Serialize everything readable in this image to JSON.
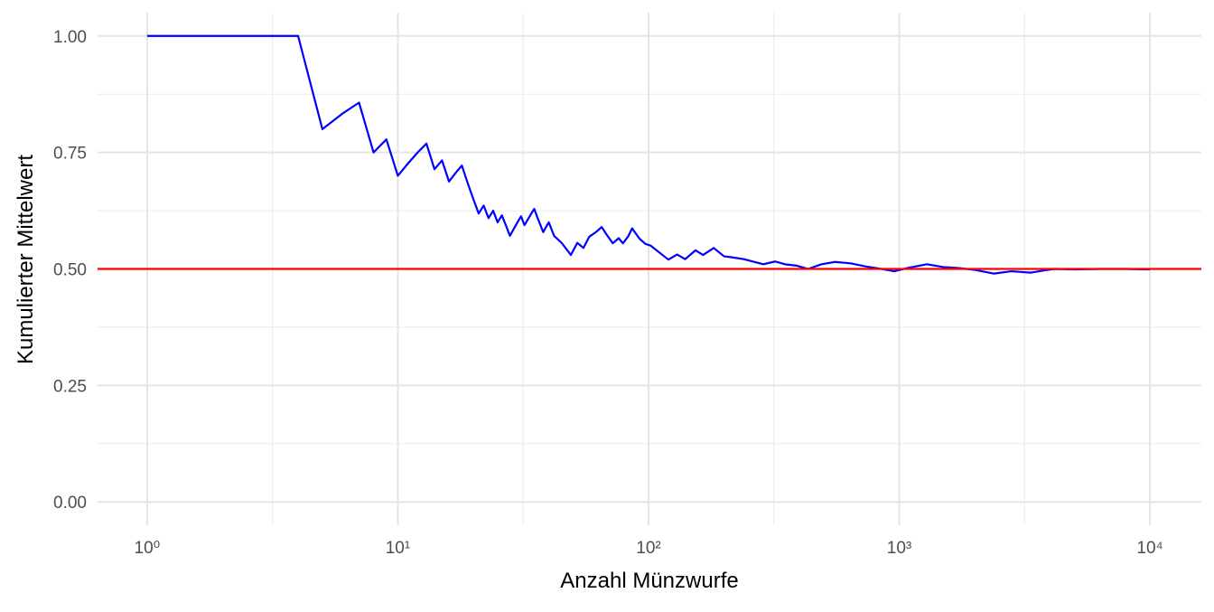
{
  "chart_data": {
    "type": "line",
    "x_label": "Anzahl Münzwurfe",
    "y_label": "Kumulierter Mittelwert",
    "log_x": true,
    "grid": true,
    "xlim": [
      0.634,
      16040
    ],
    "ylim": [
      -0.05,
      1.05
    ],
    "xticks": [
      {
        "value": 1,
        "label": "10⁰"
      },
      {
        "value": 10,
        "label": "10¹"
      },
      {
        "value": 100,
        "label": "10²"
      },
      {
        "value": 1000,
        "label": "10³"
      },
      {
        "value": 10000,
        "label": "10⁴"
      }
    ],
    "x_minor_ticks": [
      3.162,
      31.62,
      316.2,
      3162
    ],
    "yticks": [
      {
        "value": 0,
        "label": "0.00"
      },
      {
        "value": 0.25,
        "label": "0.25"
      },
      {
        "value": 0.5,
        "label": "0.50"
      },
      {
        "value": 0.75,
        "label": "0.75"
      },
      {
        "value": 1,
        "label": "1.00"
      }
    ],
    "y_minor_ticks": [
      0.125,
      0.375,
      0.625,
      0.875
    ],
    "hline": {
      "value": 0.5,
      "color": "#ff0000"
    },
    "x": [
      1,
      2,
      3,
      4,
      5,
      6,
      7,
      8,
      9,
      10,
      11,
      12,
      13,
      14,
      15,
      16,
      17,
      18,
      19,
      20,
      21,
      22,
      23,
      24,
      25,
      26,
      27,
      28,
      29,
      30,
      31,
      32,
      33,
      34,
      35,
      36,
      37,
      38,
      39,
      40,
      42,
      45,
      49,
      52,
      55,
      58,
      62,
      65,
      68,
      72,
      76,
      79,
      83,
      86,
      92,
      97,
      102,
      110,
      120,
      130,
      140,
      154,
      165,
      182,
      200,
      215,
      240,
      265,
      287,
      320,
      350,
      390,
      433,
      490,
      555,
      640,
      740,
      850,
      955,
      1100,
      1290,
      1500,
      1720,
      2000,
      2390,
      2800,
      3350,
      3800,
      4170,
      5000,
      6420,
      8000,
      10000
    ],
    "series": [
      {
        "name": "Mittelwert",
        "color": "#0000ff",
        "values": [
          1,
          1,
          1,
          1,
          0.8,
          0.833,
          0.857,
          0.75,
          0.778,
          0.7,
          0.727,
          0.75,
          0.769,
          0.714,
          0.733,
          0.6875,
          0.706,
          0.722,
          0.684,
          0.65,
          0.619,
          0.636,
          0.609,
          0.625,
          0.6,
          0.615,
          0.593,
          0.571,
          0.586,
          0.6,
          0.613,
          0.594,
          0.606,
          0.618,
          0.629,
          0.611,
          0.595,
          0.579,
          0.59,
          0.6,
          0.571,
          0.556,
          0.53,
          0.556,
          0.545,
          0.569,
          0.58,
          0.59,
          0.574,
          0.555,
          0.566,
          0.555,
          0.57,
          0.587,
          0.565,
          0.554,
          0.55,
          0.536,
          0.52,
          0.531,
          0.521,
          0.54,
          0.53,
          0.545,
          0.527,
          0.525,
          0.521,
          0.515,
          0.51,
          0.516,
          0.51,
          0.507,
          0.5,
          0.51,
          0.515,
          0.512,
          0.505,
          0.5,
          0.495,
          0.503,
          0.51,
          0.504,
          0.502,
          0.498,
          0.49,
          0.495,
          0.492,
          0.497,
          0.5,
          0.499,
          0.5,
          0.5,
          0.499
        ]
      }
    ]
  }
}
